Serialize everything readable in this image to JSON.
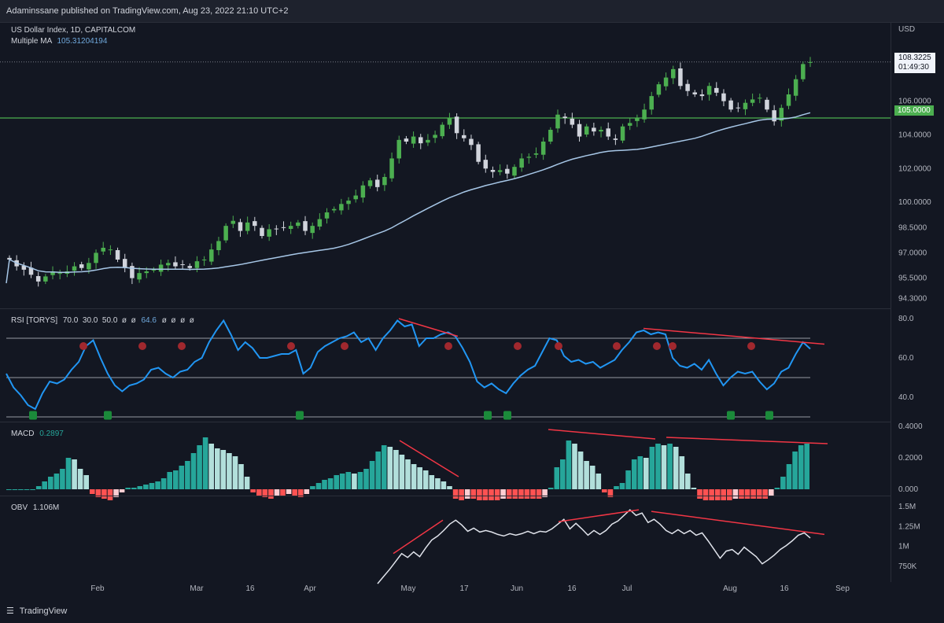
{
  "header": {
    "published_text": "Adaminssane published on TradingView.com, Aug 23, 2022 21:10 UTC+2"
  },
  "main_pane": {
    "symbol_label": "US Dollar Index, 1D, CAPITALCOM",
    "ma_label": "Multiple MA",
    "ma_value": "105.31204194",
    "currency": "USD",
    "last_price": "108.3225",
    "countdown": "01:49:30",
    "level_label": "105.0000"
  },
  "rsi_pane": {
    "label": "RSI [TORYS]",
    "params": "70.0  30.0  50.0  ø  ø",
    "value": "64.6",
    "params_tail": "ø  ø  ø  ø"
  },
  "macd_pane": {
    "label": "MACD",
    "value": "0.2897"
  },
  "obv_pane": {
    "label": "OBV",
    "value": "1.106M"
  },
  "footer": {
    "brand": "TradingView"
  },
  "colors": {
    "background": "#131722",
    "up_candle": "#26a69a",
    "up_candle_green": "#4caf50",
    "down_candle": "#d1d4dc",
    "ma_line": "#a7c7e7",
    "level_line": "#4caf50",
    "rsi_line": "#2196f3",
    "divergence": "#f23645",
    "macd_pos_strong": "#26a69a",
    "macd_pos_weak": "#b2dfdb",
    "macd_neg_strong": "#ff5252",
    "macd_neg_weak": "#ffcdd2",
    "obv_line": "#e0e3eb",
    "hidden_div": "#1b8a3a",
    "regular_div": "#a0282e"
  },
  "chart_data": [
    {
      "type": "candlestick",
      "title": "US Dollar Index, 1D, CAPITALCOM",
      "x_tick_labels": [
        "Feb",
        "Mar",
        "16",
        "Apr",
        "May",
        "17",
        "Jun",
        "16",
        "Jul",
        "Aug",
        "16",
        "Sep"
      ],
      "y_tick_labels": [
        "94.3000",
        "95.5000",
        "97.0000",
        "98.5000",
        "100.0000",
        "102.0000",
        "104.0000",
        "106.0000"
      ],
      "ylim": [
        93.8,
        110.6
      ],
      "close": [
        96.6,
        96.2,
        96.0,
        95.7,
        95.3,
        95.6,
        95.9,
        95.8,
        95.9,
        96.2,
        96.1,
        96.4,
        97.0,
        97.3,
        97.2,
        96.6,
        96.1,
        95.5,
        95.8,
        95.9,
        96.0,
        96.3,
        96.4,
        96.2,
        96.3,
        96.1,
        96.5,
        96.6,
        97.2,
        97.7,
        98.6,
        98.9,
        98.3,
        98.8,
        98.6,
        98.0,
        98.4,
        98.4,
        98.5,
        98.6,
        98.8,
        98.3,
        98.6,
        99.0,
        99.4,
        99.6,
        99.9,
        100.1,
        100.4,
        101.0,
        101.3,
        100.9,
        101.5,
        102.6,
        103.7,
        103.6,
        103.9,
        103.5,
        103.7,
        104.0,
        104.6,
        105.0,
        104.1,
        103.8,
        103.4,
        102.4,
        102.0,
        101.8,
        101.9,
        101.7,
        102.1,
        102.6,
        102.7,
        102.9,
        103.6,
        104.3,
        105.2,
        105.0,
        104.6,
        103.9,
        104.5,
        104.2,
        104.3,
        103.9,
        103.7,
        104.5,
        104.7,
        105.0,
        105.5,
        106.3,
        107.0,
        107.4,
        107.9,
        106.9,
        106.6,
        106.4,
        106.3,
        106.9,
        106.5,
        106.0,
        105.5,
        105.6,
        105.9,
        106.1,
        106.2,
        105.5,
        104.8,
        105.6,
        106.4,
        107.3,
        108.2,
        108.32
      ],
      "last_price": 108.3225,
      "reference_level": 105.0,
      "moving_average": {
        "name": "Multiple MA",
        "last": 105.31204194
      }
    },
    {
      "type": "line",
      "title": "RSI [TORYS]",
      "y_tick_labels": [
        "40.0",
        "60.0",
        "80.0"
      ],
      "ylim": [
        30,
        82
      ],
      "levels": [
        70,
        50,
        30
      ],
      "values": [
        52,
        45,
        41,
        36,
        34,
        42,
        48,
        47,
        49,
        54,
        58,
        66,
        69,
        60,
        52,
        46,
        43,
        46,
        47,
        49,
        54,
        55,
        52,
        50,
        53,
        54,
        58,
        60,
        68,
        74,
        79,
        72,
        64,
        68,
        65,
        60,
        60,
        61,
        62,
        62,
        64,
        52,
        55,
        63,
        66,
        68,
        70,
        71,
        73,
        68,
        70,
        64,
        70,
        74,
        79,
        76,
        77,
        66,
        70,
        70,
        72,
        73,
        71,
        65,
        58,
        48,
        45,
        47,
        44,
        42,
        47,
        51,
        54,
        56,
        63,
        70,
        69,
        61,
        58,
        59,
        57,
        58,
        55,
        57,
        59,
        64,
        68,
        73,
        74,
        72,
        73,
        72,
        60,
        56,
        55,
        57,
        54,
        59,
        52,
        46,
        50,
        53,
        52,
        53,
        48,
        44,
        47,
        53,
        55,
        62,
        68,
        64.6
      ],
      "last": 64.6
    },
    {
      "type": "bar",
      "title": "MACD",
      "y_tick_labels": [
        "0.000",
        "0.2000",
        "0.4000"
      ],
      "ylim": [
        -0.03,
        0.41
      ],
      "values": [
        0,
        0,
        0,
        0,
        0,
        0.02,
        0.05,
        0.08,
        0.1,
        0.13,
        0.2,
        0.19,
        0.13,
        0.09,
        -0.03,
        -0.05,
        -0.06,
        -0.07,
        -0.05,
        -0.02,
        0.01,
        0.01,
        0.02,
        0.03,
        0.04,
        0.05,
        0.07,
        0.11,
        0.12,
        0.15,
        0.18,
        0.23,
        0.28,
        0.33,
        0.29,
        0.26,
        0.25,
        0.23,
        0.21,
        0.16,
        0.08,
        -0.02,
        -0.04,
        -0.05,
        -0.06,
        -0.04,
        -0.04,
        -0.03,
        -0.04,
        -0.05,
        -0.03,
        0.02,
        0.04,
        0.06,
        0.07,
        0.09,
        0.1,
        0.11,
        0.1,
        0.11,
        0.13,
        0.18,
        0.24,
        0.28,
        0.27,
        0.25,
        0.22,
        0.19,
        0.16,
        0.14,
        0.12,
        0.09,
        0.07,
        0.05,
        0.02,
        -0.06,
        -0.07,
        -0.06,
        -0.06,
        -0.07,
        -0.07,
        -0.07,
        -0.07,
        -0.06,
        -0.06,
        -0.06,
        -0.06,
        -0.06,
        -0.06,
        -0.06,
        -0.05,
        0.01,
        0.14,
        0.19,
        0.31,
        0.29,
        0.24,
        0.18,
        0.15,
        0.1,
        -0.02,
        -0.05,
        0.02,
        0.04,
        0.12,
        0.19,
        0.21,
        0.2,
        0.27,
        0.29,
        0.28,
        0.29,
        0.27,
        0.21,
        0.1,
        0.01,
        -0.06,
        -0.07,
        -0.07,
        -0.07,
        -0.07,
        -0.07,
        -0.06,
        -0.06,
        -0.06,
        -0.06,
        -0.06,
        -0.06,
        -0.04,
        0.01,
        0.08,
        0.16,
        0.24,
        0.28,
        0.29
      ],
      "last": 0.2897
    },
    {
      "type": "line",
      "title": "OBV",
      "y_tick_labels": [
        "750K",
        "1M",
        "1.25M",
        "1.5M"
      ],
      "ylim": [
        0.55,
        1.6
      ],
      "values": [
        0.53,
        0.62,
        0.71,
        0.81,
        0.91,
        0.86,
        0.93,
        0.87,
        0.98,
        1.08,
        1.13,
        1.2,
        1.28,
        1.33,
        1.27,
        1.19,
        1.23,
        1.18,
        1.2,
        1.18,
        1.15,
        1.13,
        1.16,
        1.14,
        1.16,
        1.19,
        1.16,
        1.19,
        1.18,
        1.22,
        1.28,
        1.34,
        1.22,
        1.29,
        1.22,
        1.14,
        1.2,
        1.15,
        1.2,
        1.28,
        1.32,
        1.39,
        1.46,
        1.39,
        1.42,
        1.3,
        1.34,
        1.28,
        1.2,
        1.16,
        1.21,
        1.16,
        1.2,
        1.14,
        1.17,
        1.07,
        0.96,
        0.85,
        0.94,
        0.96,
        0.9,
        0.99,
        0.93,
        0.87,
        0.78,
        0.83,
        0.89,
        0.96,
        1.01,
        1.07,
        1.14,
        1.17,
        1.106
      ],
      "last": "1.106M"
    }
  ]
}
